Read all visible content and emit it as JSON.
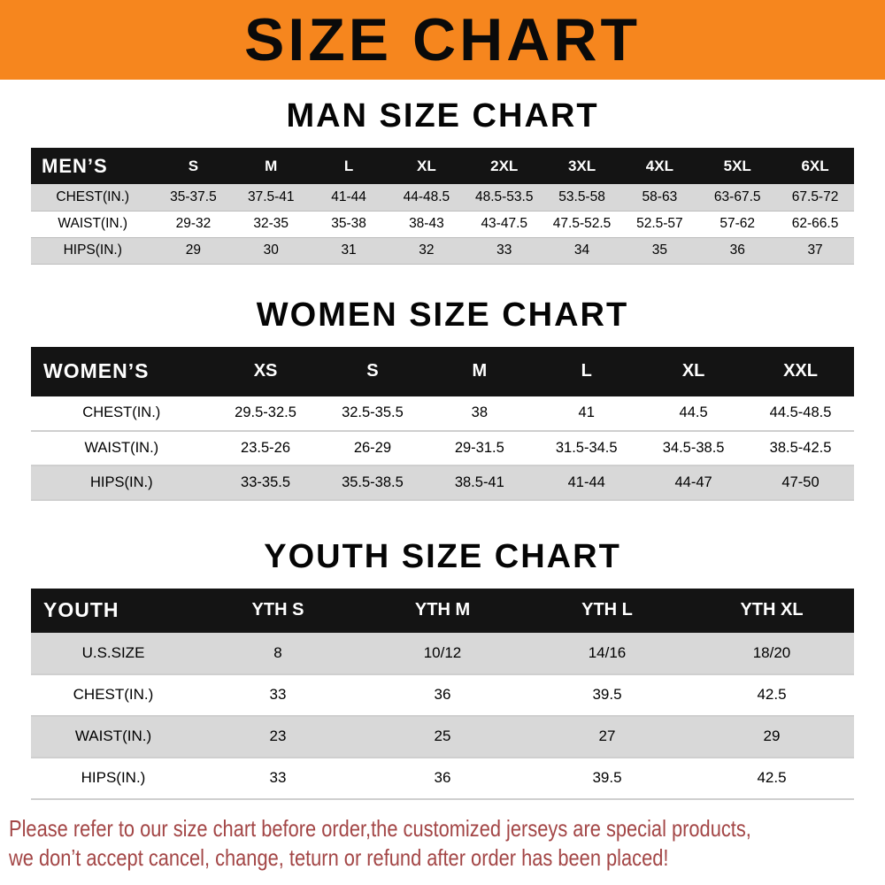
{
  "colors": {
    "banner-bg": "#f6861e",
    "header-bg": "#141414",
    "stripe": "#d8d8d8",
    "footer-red": "#a34646"
  },
  "banner": {
    "title": "SIZE CHART"
  },
  "sections": [
    {
      "heading": "MAN SIZE CHART",
      "table": {
        "header": [
          "MEN’S",
          "S",
          "M",
          "L",
          "XL",
          "2XL",
          "3XL",
          "4XL",
          "5XL",
          "6XL"
        ],
        "rows": [
          {
            "label": "CHEST(IN.)",
            "values": [
              "35-37.5",
              "37.5-41",
              "41-44",
              "44-48.5",
              "48.5-53.5",
              "53.5-58",
              "58-63",
              "63-67.5",
              "67.5-72"
            ]
          },
          {
            "label": "WAIST(IN.)",
            "values": [
              "29-32",
              "32-35",
              "35-38",
              "38-43",
              "43-47.5",
              "47.5-52.5",
              "52.5-57",
              "57-62",
              "62-66.5"
            ]
          },
          {
            "label": "HIPS(IN.)",
            "values": [
              "29",
              "30",
              "31",
              "32",
              "33",
              "34",
              "35",
              "36",
              "37"
            ]
          }
        ]
      }
    },
    {
      "heading": "WOMEN SIZE CHART",
      "table": {
        "header": [
          "WOMEN’S",
          "XS",
          "S",
          "M",
          "L",
          "XL",
          "XXL"
        ],
        "rows": [
          {
            "label": "CHEST(IN.)",
            "values": [
              "29.5-32.5",
              "32.5-35.5",
              "38",
              "41",
              "44.5",
              "44.5-48.5"
            ]
          },
          {
            "label": "WAIST(IN.)",
            "values": [
              "23.5-26",
              "26-29",
              "29-31.5",
              "31.5-34.5",
              "34.5-38.5",
              "38.5-42.5"
            ]
          },
          {
            "label": "HIPS(IN.)",
            "values": [
              "33-35.5",
              "35.5-38.5",
              "38.5-41",
              "41-44",
              "44-47",
              "47-50"
            ]
          }
        ]
      }
    },
    {
      "heading": "YOUTH SIZE CHART",
      "table": {
        "header": [
          "YOUTH",
          "YTH S",
          "YTH M",
          "YTH L",
          "YTH XL"
        ],
        "rows": [
          {
            "label": "U.S.SIZE",
            "values": [
              "8",
              "10/12",
              "14/16",
              "18/20"
            ]
          },
          {
            "label": "CHEST(IN.)",
            "values": [
              "33",
              "36",
              "39.5",
              "42.5"
            ]
          },
          {
            "label": "WAIST(IN.)",
            "values": [
              "23",
              "25",
              "27",
              "29"
            ]
          },
          {
            "label": "HIPS(IN.)",
            "values": [
              "33",
              "36",
              "39.5",
              "42.5"
            ]
          }
        ]
      }
    }
  ],
  "footer": {
    "line1": "Please refer to our size chart before order,the customized jerseys are special products,",
    "line2": "we don’t accept cancel, change, teturn or refund after order has been placed!"
  }
}
